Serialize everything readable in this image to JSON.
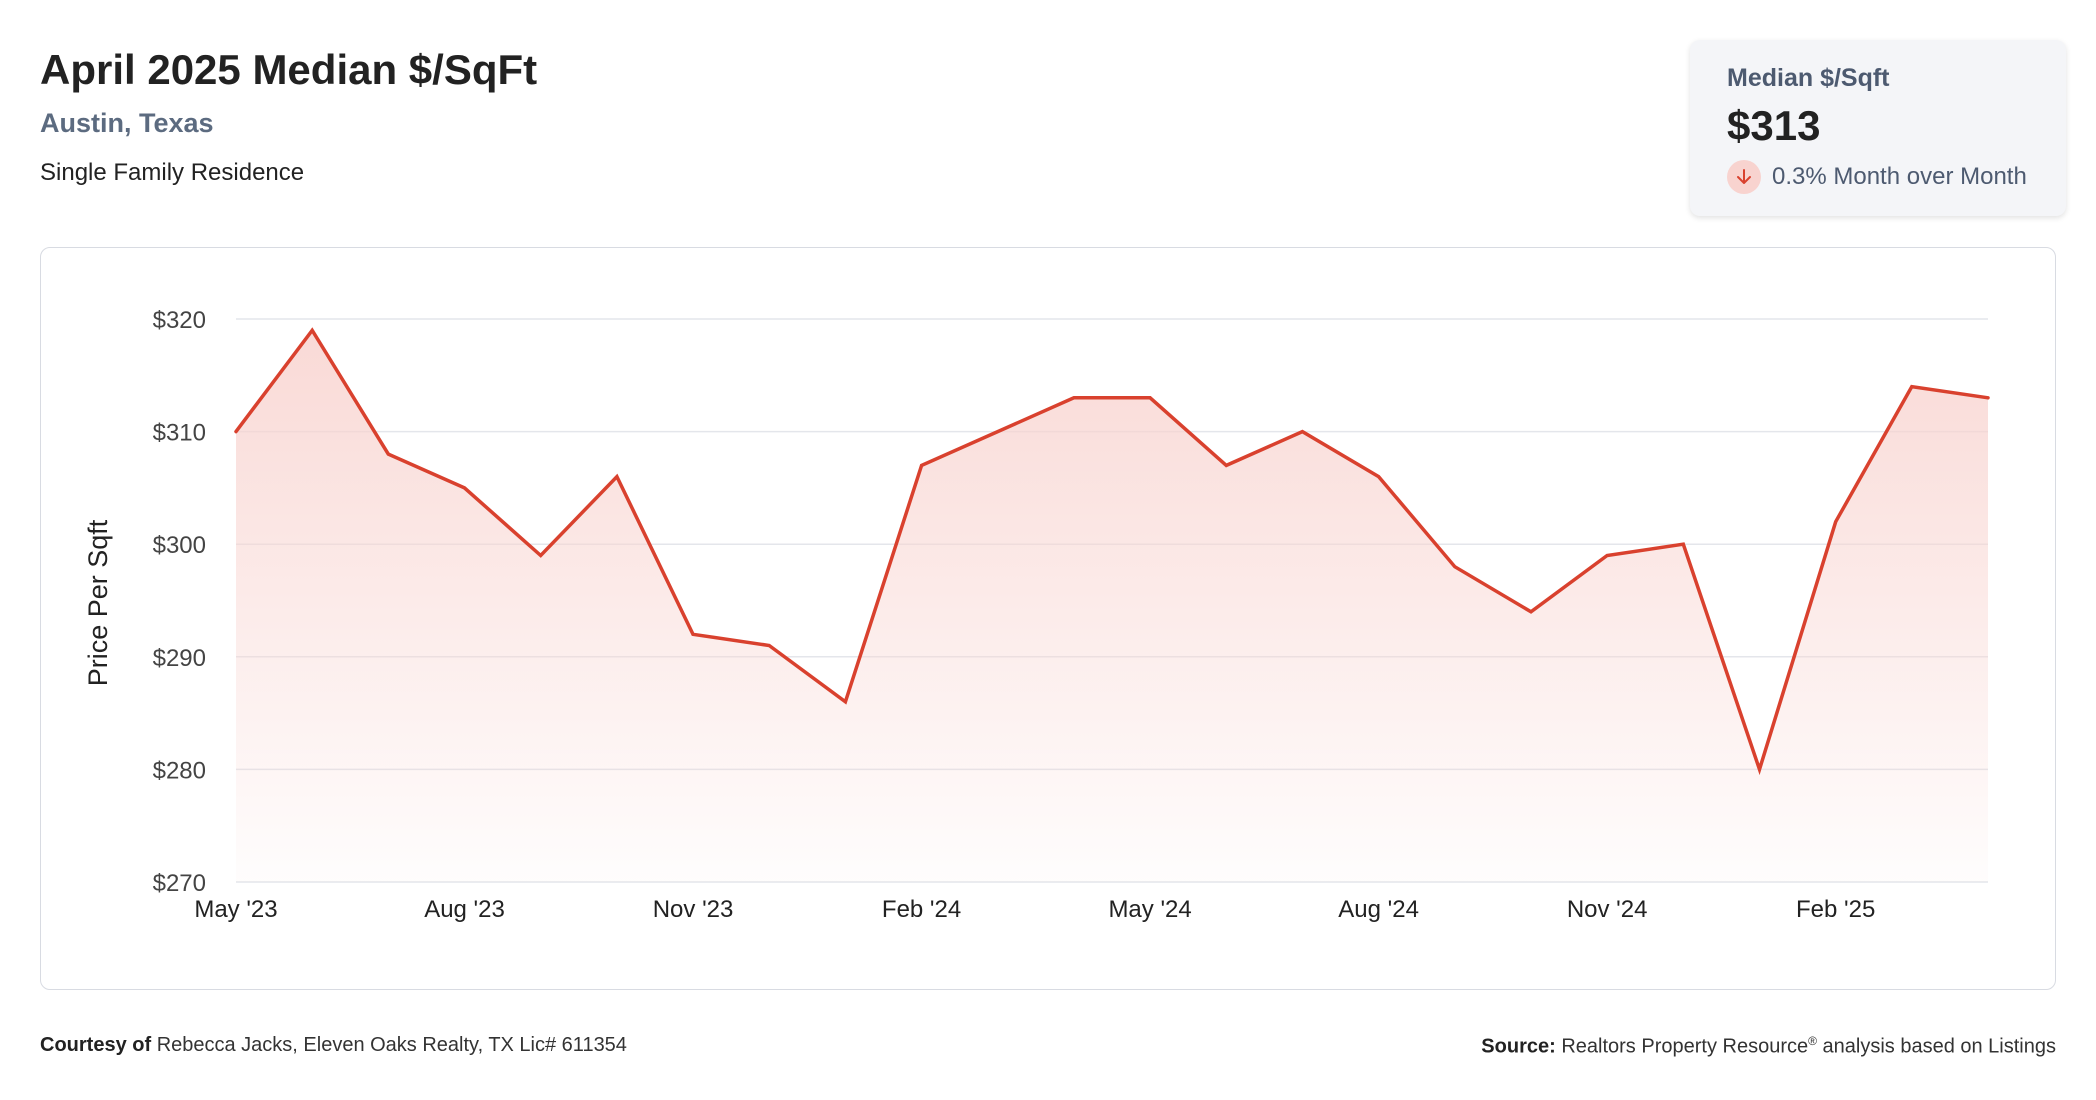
{
  "header": {
    "title": "April 2025 Median $/SqFt",
    "location": "Austin, Texas",
    "property_type": "Single Family Residence"
  },
  "kpi": {
    "label": "Median $/Sqft",
    "value": "$313",
    "change_text": "0.3% Month over Month",
    "direction_icon": "arrow-down-icon",
    "negative_color": "#d9412e"
  },
  "chart_data": {
    "type": "area",
    "title": "",
    "xlabel": "",
    "ylabel": "Price Per Sqft",
    "ylim": [
      270,
      320
    ],
    "yticks": [
      320,
      310,
      300,
      290,
      280,
      270
    ],
    "ytick_labels": [
      "$320",
      "$310",
      "$300",
      "$290",
      "$280",
      "$270"
    ],
    "x": [
      "May '23",
      "Jun '23",
      "Jul '23",
      "Aug '23",
      "Sep '23",
      "Oct '23",
      "Nov '23",
      "Dec '23",
      "Jan '24",
      "Feb '24",
      "Mar '24",
      "Apr '24",
      "May '24",
      "Jun '24",
      "Jul '24",
      "Aug '24",
      "Sep '24",
      "Oct '24",
      "Nov '24",
      "Dec '24",
      "Jan '25",
      "Feb '25",
      "Mar '25",
      "Apr '25"
    ],
    "xticks": [
      "May '23",
      "Aug '23",
      "Nov '23",
      "Feb '24",
      "May '24",
      "Aug '24",
      "Nov '24",
      "Feb '25"
    ],
    "values": [
      310,
      319,
      308,
      305,
      299,
      306,
      292,
      291,
      286,
      307,
      310,
      313,
      313,
      307,
      310,
      306,
      298,
      294,
      299,
      300,
      280,
      302,
      314,
      313
    ],
    "line_color": "#d9412e",
    "fill_color": "#f8d3cf",
    "grid": true,
    "legend": "none"
  },
  "footer": {
    "courtesy_label": "Courtesy of",
    "courtesy_text": "Rebecca Jacks, Eleven Oaks Realty, TX Lic# 611354",
    "source_label": "Source:",
    "source_text_1": "Realtors Property Resource",
    "source_reg": "®",
    "source_text_2": " analysis based on Listings"
  }
}
